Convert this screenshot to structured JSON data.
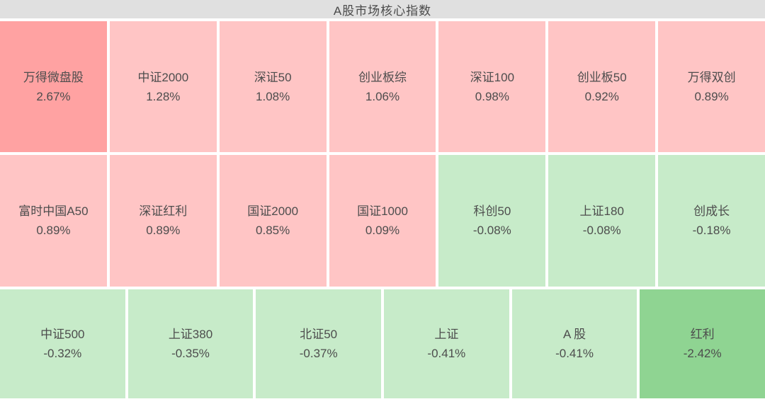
{
  "title": "A股市场核心指数",
  "colors": {
    "strong_up": "#ffa2a2",
    "up": "#ffc5c5",
    "down": "#c7ebc9",
    "strong_down": "#8fd492",
    "header_bg": "#e0e0e0",
    "text": "#4d4d4d",
    "gutter": "#ffffff"
  },
  "chart_data": {
    "type": "heatmap",
    "title": "A股市场核心指数",
    "legend": "none",
    "grid": "tiles separated by white gutters, red shades = gains, green shades = losses, intensity = magnitude",
    "rows": [
      {
        "tiles": [
          {
            "name": "万得微盘股",
            "change": "2.67%",
            "value": 2.67,
            "color": "#ffa2a2"
          },
          {
            "name": "中证2000",
            "change": "1.28%",
            "value": 1.28,
            "color": "#ffc5c5"
          },
          {
            "name": "深证50",
            "change": "1.08%",
            "value": 1.08,
            "color": "#ffc5c5"
          },
          {
            "name": "创业板综",
            "change": "1.06%",
            "value": 1.06,
            "color": "#ffc5c5"
          },
          {
            "name": "深证100",
            "change": "0.98%",
            "value": 0.98,
            "color": "#ffc5c5"
          },
          {
            "name": "创业板50",
            "change": "0.92%",
            "value": 0.92,
            "color": "#ffc5c5"
          },
          {
            "name": "万得双创",
            "change": "0.89%",
            "value": 0.89,
            "color": "#ffc5c5"
          }
        ]
      },
      {
        "tiles": [
          {
            "name": "富时中国A50",
            "change": "0.89%",
            "value": 0.89,
            "color": "#ffc5c5"
          },
          {
            "name": "深证红利",
            "change": "0.89%",
            "value": 0.89,
            "color": "#ffc5c5"
          },
          {
            "name": "国证2000",
            "change": "0.85%",
            "value": 0.85,
            "color": "#ffc5c5"
          },
          {
            "name": "国证1000",
            "change": "0.09%",
            "value": 0.09,
            "color": "#ffc5c5"
          },
          {
            "name": "科创50",
            "change": "-0.08%",
            "value": -0.08,
            "color": "#c7ebc9"
          },
          {
            "name": "上证180",
            "change": "-0.08%",
            "value": -0.08,
            "color": "#c7ebc9"
          },
          {
            "name": "创成长",
            "change": "-0.18%",
            "value": -0.18,
            "color": "#c7ebc9"
          }
        ]
      },
      {
        "tiles": [
          {
            "name": "中证500",
            "change": "-0.32%",
            "value": -0.32,
            "color": "#c7ebc9"
          },
          {
            "name": "上证380",
            "change": "-0.35%",
            "value": -0.35,
            "color": "#c7ebc9"
          },
          {
            "name": "北证50",
            "change": "-0.37%",
            "value": -0.37,
            "color": "#c7ebc9"
          },
          {
            "name": "上证",
            "change": "-0.41%",
            "value": -0.41,
            "color": "#c7ebc9"
          },
          {
            "name": "A 股",
            "change": "-0.41%",
            "value": -0.41,
            "color": "#c7ebc9"
          },
          {
            "name": "红利",
            "change": "-2.42%",
            "value": -2.42,
            "color": "#8fd492"
          }
        ]
      }
    ]
  }
}
